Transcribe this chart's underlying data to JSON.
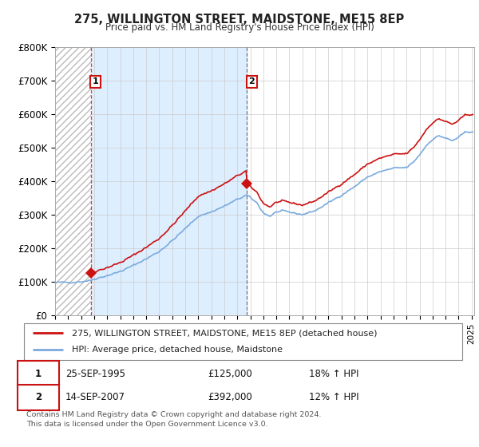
{
  "title": "275, WILLINGTON STREET, MAIDSTONE, ME15 8EP",
  "subtitle": "Price paid vs. HM Land Registry's House Price Index (HPI)",
  "ylim": [
    0,
    800000
  ],
  "yticks": [
    0,
    100000,
    200000,
    300000,
    400000,
    500000,
    600000,
    700000,
    800000
  ],
  "ytick_labels": [
    "£0",
    "£100K",
    "£200K",
    "£300K",
    "£400K",
    "£500K",
    "£600K",
    "£700K",
    "£800K"
  ],
  "xlim_start": 1993.0,
  "xlim_end": 2025.2,
  "hatch_end_year": 1995.73,
  "sale1_year": 1995.73,
  "sale1_price": 125000,
  "sale1_label": "1",
  "sale2_year": 2007.71,
  "sale2_price": 392000,
  "sale2_label": "2",
  "property_color": "#cc1111",
  "hpi_color": "#7aaadd",
  "shade_color": "#ddeeff",
  "hatch_color": "#bbbbbb",
  "legend_property": "275, WILLINGTON STREET, MAIDSTONE, ME15 8EP (detached house)",
  "legend_hpi": "HPI: Average price, detached house, Maidstone",
  "table_row1": [
    "1",
    "25-SEP-1995",
    "£125,000",
    "18% ↑ HPI"
  ],
  "table_row2": [
    "2",
    "14-SEP-2007",
    "£392,000",
    "12% ↑ HPI"
  ],
  "footnote": "Contains HM Land Registry data © Crown copyright and database right 2024.\nThis data is licensed under the Open Government Licence v3.0.",
  "background_color": "#ffffff",
  "grid_color": "#cccccc"
}
